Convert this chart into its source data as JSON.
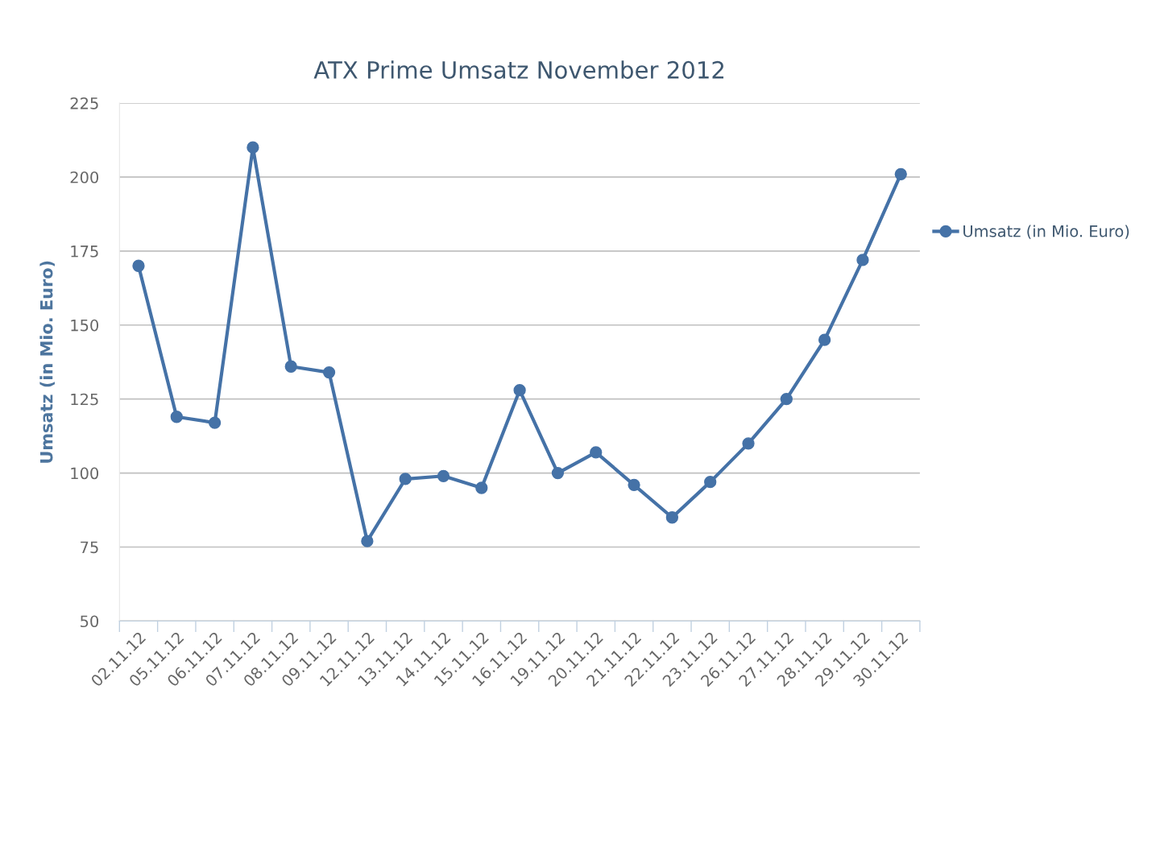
{
  "chart_data": {
    "type": "line",
    "title": "ATX Prime Umsatz November 2012",
    "ylabel": "Umsatz (in Mio. Euro)",
    "categories": [
      "02.11.12",
      "05.11.12",
      "06.11.12",
      "07.11.12",
      "08.11.12",
      "09.11.12",
      "12.11.12",
      "13.11.12",
      "14.11.12",
      "15.11.12",
      "16.11.12",
      "19.11.12",
      "20.11.12",
      "21.11.12",
      "22.11.12",
      "23.11.12",
      "26.11.12",
      "27.11.12",
      "28.11.12",
      "29.11.12",
      "30.11.12"
    ],
    "series": [
      {
        "name": "Umsatz (in Mio. Euro)",
        "color": "#4572a7",
        "values": [
          170,
          119,
          117,
          210,
          136,
          134,
          77,
          98,
          99,
          95,
          128,
          100,
          107,
          96,
          85,
          97,
          110,
          125,
          145,
          172,
          201
        ]
      }
    ],
    "ylim": [
      50,
      225
    ],
    "yticks": [
      50,
      75,
      100,
      125,
      150,
      175,
      200,
      225
    ],
    "grid": "y",
    "legend": "right",
    "marker": "circle",
    "line_style": "solid"
  }
}
